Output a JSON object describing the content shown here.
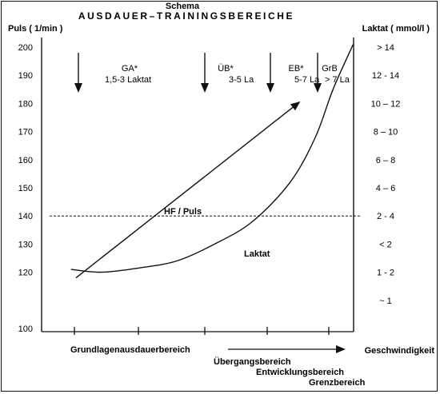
{
  "chart_data": {
    "type": "line",
    "subtitle": "Schema",
    "title": "AUSDAUER–TRAININGSBEREICHE",
    "ylabel_left": "Puls ( 1/min )",
    "ylabel_right": "Laktat ( mmol/l )",
    "xlabel": "Geschwindigkeit",
    "ylim": [
      100,
      200
    ],
    "y_ticks": [
      200,
      190,
      180,
      170,
      160,
      150,
      140,
      130,
      120,
      110,
      100
    ],
    "y_tick_labels": [
      "200",
      "190",
      "180",
      "170",
      "160",
      "150",
      "140",
      "130",
      "120",
      "",
      "100"
    ],
    "right_tick_labels": [
      "> 14",
      "12 - 14",
      "10 – 12",
      "8 – 10",
      "6 – 8",
      "4 – 6",
      "2 - 4",
      "< 2",
      "1 - 2",
      "~ 1"
    ],
    "x_categories": [
      "Grundlagenausdauerbereich",
      "Übergangsbereich",
      "Entwicklungsbereich",
      "Grenzbereich"
    ],
    "reference_line": {
      "y": 140,
      "style": "dashed"
    },
    "series": [
      {
        "name": "HF / Puls",
        "shape": "line-with-arrow",
        "points": [
          {
            "x": 0.0,
            "y": 118
          },
          {
            "x": 0.88,
            "y": 180
          }
        ]
      },
      {
        "name": "Laktat",
        "shape": "curve",
        "points": [
          {
            "x": -0.02,
            "y": 121
          },
          {
            "x": 0.1,
            "y": 120
          },
          {
            "x": 0.25,
            "y": 121.5
          },
          {
            "x": 0.4,
            "y": 124
          },
          {
            "x": 0.55,
            "y": 130
          },
          {
            "x": 0.7,
            "y": 138
          },
          {
            "x": 0.85,
            "y": 152
          },
          {
            "x": 0.95,
            "y": 168
          },
          {
            "x": 1.02,
            "y": 185
          },
          {
            "x": 1.1,
            "y": 201
          }
        ]
      }
    ],
    "zones": [
      {
        "name": "GA*",
        "detail": "1,5-3 Laktat"
      },
      {
        "name": "ÜB*",
        "detail": "3-5 La"
      },
      {
        "name": "EB*",
        "detail": "5-7 La"
      },
      {
        "name": "GrB",
        "detail": "> 7 La"
      }
    ]
  }
}
